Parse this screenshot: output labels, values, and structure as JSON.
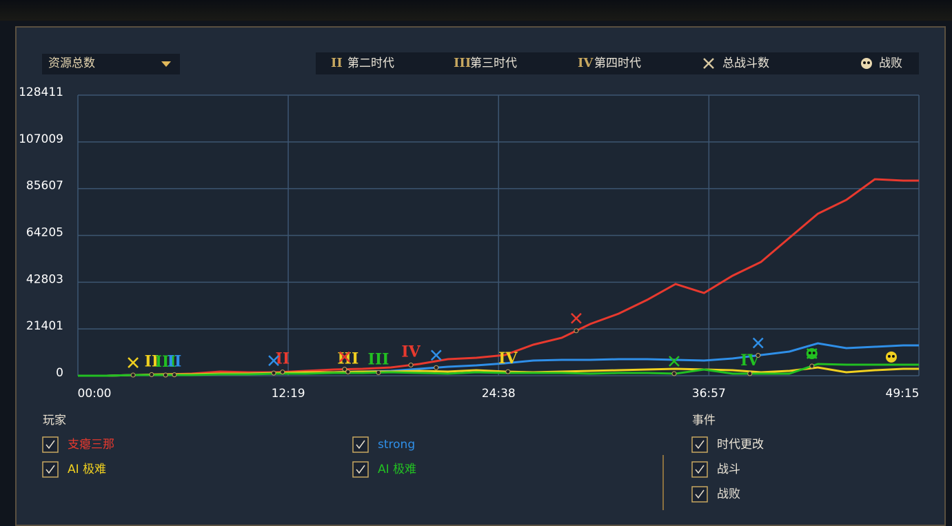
{
  "selector": "资源总数",
  "event_legend": [
    {
      "symbol": "II",
      "label": "第二时代"
    },
    {
      "symbol": "III",
      "label": "第三时代"
    },
    {
      "symbol": "IV",
      "label": "第四时代"
    },
    {
      "label": "总战斗数"
    },
    {
      "label": "战败"
    }
  ],
  "chart_data": {
    "type": "line",
    "x": [
      0,
      100,
      200,
      300,
      400,
      500,
      600,
      700,
      800,
      900,
      1000,
      1100,
      1200,
      1300,
      1400,
      1500,
      1600,
      1700,
      1800,
      1900,
      2000,
      2100,
      2200,
      2300,
      2400,
      2500,
      2600,
      2700,
      2800,
      2900,
      2955
    ],
    "xlim": [
      0,
      2955
    ],
    "xticks": [
      {
        "value": 0,
        "label": "00:00"
      },
      {
        "value": 739,
        "label": "12:19"
      },
      {
        "value": 1478,
        "label": "24:38"
      },
      {
        "value": 2217,
        "label": "36:57"
      },
      {
        "value": 2955,
        "label": "49:15"
      }
    ],
    "ylim": [
      0,
      128411
    ],
    "yticks": [
      0,
      21401,
      42803,
      64205,
      85607,
      107009,
      128411
    ],
    "grid": true,
    "legend_title": "玩家",
    "series": [
      {
        "name": "支瘪三那",
        "color": "#e8392e",
        "values": [
          0,
          0,
          316,
          631,
          946,
          1893,
          1578,
          1578,
          2209,
          2840,
          3155,
          3786,
          5363,
          7572,
          8203,
          9465,
          14198,
          17353,
          23663,
          28395,
          34705,
          41962,
          37860,
          45748,
          52058,
          63100,
          74143,
          80453,
          89918,
          89288,
          89288
        ]
      },
      {
        "name": "strong",
        "color": "#2f8fe8",
        "values": [
          0,
          0,
          316,
          316,
          631,
          631,
          946,
          1262,
          1262,
          1578,
          1893,
          2209,
          3155,
          4102,
          4733,
          5679,
          6941,
          7257,
          7257,
          7572,
          7572,
          7257,
          6941,
          7888,
          9465,
          11043,
          14829,
          12620,
          13251,
          13882,
          13882
        ]
      },
      {
        "name": "AI 极难",
        "color": "#f0d020",
        "values": [
          0,
          0,
          316,
          631,
          631,
          946,
          946,
          1262,
          1578,
          1578,
          1893,
          1893,
          2209,
          1893,
          2524,
          1893,
          1578,
          1893,
          2209,
          2524,
          2840,
          3155,
          2840,
          2524,
          1578,
          2209,
          3786,
          1578,
          2524,
          3155,
          3155
        ]
      },
      {
        "name": "AI 极难",
        "color": "#22c022",
        "values": [
          0,
          0,
          316,
          316,
          316,
          631,
          631,
          946,
          946,
          1262,
          1262,
          1578,
          1262,
          946,
          1578,
          1262,
          1262,
          1262,
          946,
          1262,
          1262,
          946,
          2840,
          946,
          946,
          946,
          5363,
          5048,
          5048,
          5048,
          5048
        ]
      }
    ],
    "age_events": [
      {
        "x": 259,
        "label": "II",
        "color": "#f0d020"
      },
      {
        "x": 308,
        "label": "III",
        "color": "#22c022"
      },
      {
        "x": 339,
        "label": "II",
        "color": "#2f8fe8"
      },
      {
        "x": 719,
        "label": "II",
        "color": "#e8392e"
      },
      {
        "x": 949,
        "label": "III",
        "color": "#f0d020"
      },
      {
        "x": 1056,
        "label": "III",
        "color": "#22c022"
      },
      {
        "x": 1170,
        "label": "IV",
        "color": "#e8392e"
      },
      {
        "x": 1511,
        "label": "IV",
        "color": "#f0d020"
      },
      {
        "x": 2361,
        "label": "IV",
        "color": "#22c022"
      }
    ],
    "battles": [
      {
        "x": 194,
        "color": "#f0d020"
      },
      {
        "x": 688,
        "color": "#2f8fe8"
      },
      {
        "x": 937,
        "color": "#e8392e"
      },
      {
        "x": 1259,
        "color": "#2f8fe8"
      },
      {
        "x": 1751,
        "color": "#e8392e"
      },
      {
        "x": 2095,
        "color": "#22c022"
      },
      {
        "x": 2390,
        "color": "#2f8fe8"
      },
      {
        "x": 2579,
        "color": "#22c022"
      }
    ],
    "defeats": [
      {
        "x": 2579,
        "color": "#22c022"
      },
      {
        "x": 2858,
        "color": "#f0d020"
      }
    ]
  },
  "events_panel": {
    "title": "事件",
    "items": [
      "时代更改",
      "战斗",
      "战败"
    ]
  }
}
